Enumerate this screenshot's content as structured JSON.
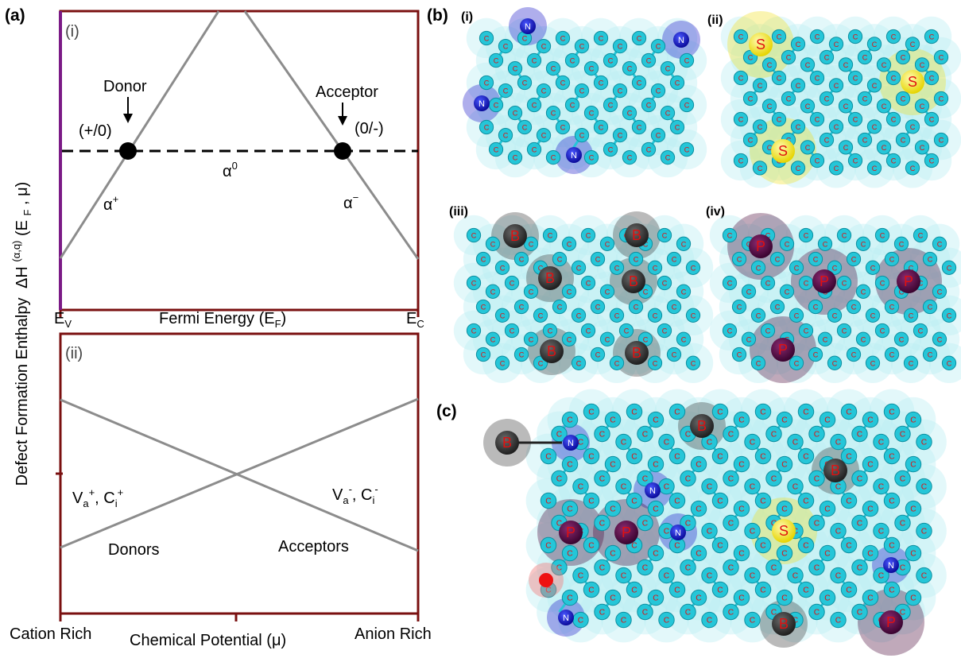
{
  "figure": {
    "panel_a": {
      "label": "(a)",
      "y_label": "Defect Formation Enthalpy",
      "y_label_symbol": "ΔH",
      "y_label_sup": "(α,q)",
      "y_label_args_pre": "(E",
      "y_label_args_sub": "F",
      "y_label_args_post": ", μ)",
      "top": {
        "label": "(i)",
        "donor": "Donor",
        "acceptor": "Acceptor",
        "donor_level": "(+/0)",
        "acceptor_level": "(0/-)",
        "alpha": "α",
        "alpha_plus_sup": "+",
        "alpha_zero_sup": "0",
        "alpha_minus_sup": "−",
        "xlabel": "Fermi Energy (E",
        "xlabel_sub": "F",
        "xlabel_end": ")",
        "ev_main": "E",
        "ev_sub": "V",
        "ec_main": "E",
        "ec_sub": "C"
      },
      "bottom": {
        "label": "(ii)",
        "left_label": "V",
        "left_sub": "a",
        "left_sup": "+",
        "left_mid": ", C",
        "left_sub2": "i",
        "left_sup2": "+",
        "right_label": "V",
        "right_sub": "a",
        "right_sup": "-",
        "right_mid": ", C",
        "right_sub2": "i",
        "right_sup2": "-",
        "donors": "Donors",
        "acceptors": "Acceptors",
        "xlabel": "Chemical Potential (μ)",
        "cation": "Cation Rich",
        "anion": "Anion Rich"
      }
    },
    "panel_b": {
      "label": "(b)",
      "sub_i": "(i)",
      "sub_ii": "(ii)",
      "sub_iii": "(iii)",
      "sub_iv": "(iv)"
    },
    "panel_c": {
      "label": "(c)"
    },
    "atoms": {
      "carbon": "C",
      "nitrogen": "N",
      "sulfur": "S",
      "boron": "B",
      "phosphorus": "P"
    },
    "colors": {
      "frame": "#7a1010",
      "axis_left": "#7b1a86",
      "line": "#8c8c8c",
      "carbon": "#25c6d8",
      "cloud": "#bdeff2",
      "nitrogen": "#1a18c8",
      "sulfur": "#f0e020",
      "boron": "#3a3a3a",
      "phosphorus": "#4a0838",
      "oxygen": "#ee1111"
    }
  }
}
